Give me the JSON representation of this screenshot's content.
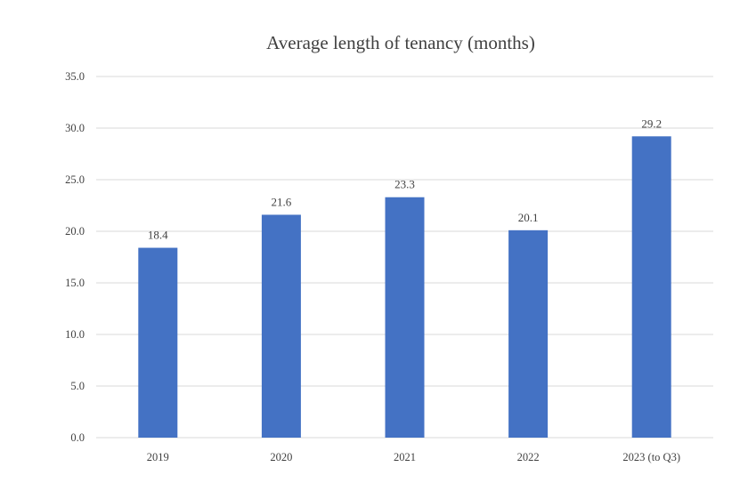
{
  "chart_data": {
    "type": "bar",
    "title": "Average length of tenancy (months)",
    "xlabel": "",
    "ylabel": "",
    "categories": [
      "2019",
      "2020",
      "2021",
      "2022",
      "2023 (to Q3)"
    ],
    "values": [
      18.4,
      21.6,
      23.3,
      20.1,
      29.2
    ],
    "data_labels": [
      "18.4",
      "21.6",
      "23.3",
      "20.1",
      "29.2"
    ],
    "ylim": [
      0,
      35
    ],
    "yticks": [
      "0.0",
      "5.0",
      "10.0",
      "15.0",
      "20.0",
      "25.0",
      "30.0",
      "35.0"
    ],
    "bar_color": "#4472c4",
    "grid": true,
    "legend": "none"
  }
}
